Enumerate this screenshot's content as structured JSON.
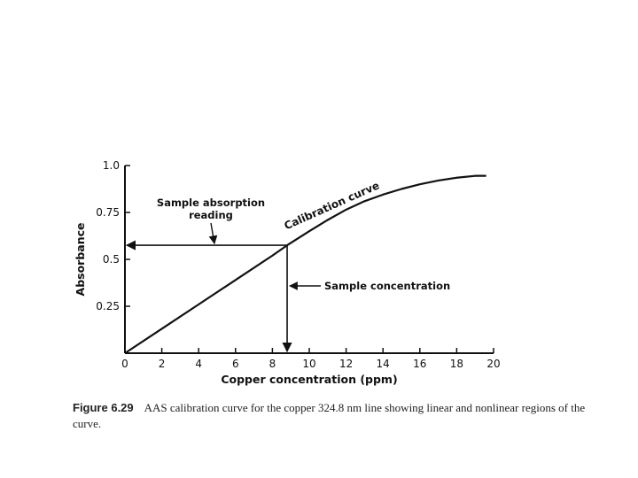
{
  "chart_data": {
    "type": "line",
    "xlabel": "Copper concentration (ppm)",
    "ylabel": "Absorbance",
    "xlim": [
      0,
      20
    ],
    "ylim": [
      0,
      1.0
    ],
    "x_ticks": [
      0,
      2,
      4,
      6,
      8,
      10,
      12,
      14,
      16,
      18,
      20
    ],
    "x_tick_labels": [
      "0",
      "2",
      "4",
      "6",
      "8",
      "10",
      "12",
      "14",
      "16",
      "18",
      "20"
    ],
    "y_ticks": [
      0.25,
      0.5,
      0.75,
      1.0
    ],
    "y_tick_labels": [
      "0.25",
      "0.5",
      "0.75",
      "1.0"
    ],
    "grid": false,
    "series": [
      {
        "name": "Calibration curve",
        "x": [
          0,
          2,
          4,
          6,
          8,
          8.8,
          10,
          11,
          12,
          13,
          14,
          15,
          16,
          17,
          18,
          19,
          19.6
        ],
        "y": [
          0,
          0.13,
          0.26,
          0.39,
          0.52,
          0.575,
          0.65,
          0.71,
          0.765,
          0.81,
          0.845,
          0.875,
          0.9,
          0.92,
          0.935,
          0.945,
          0.945
        ]
      }
    ],
    "sample_point": {
      "x": 8.8,
      "y": 0.575
    },
    "annotations": {
      "calibration_curve": "Calibration curve",
      "sample_absorption_line1": "Sample absorption",
      "sample_absorption_line2": "reading",
      "sample_concentration": "Sample concentration"
    }
  },
  "caption": {
    "figure_number": "Figure 6.29",
    "text": "AAS calibration curve for the copper 324.8 nm line showing linear and nonlinear regions of the curve."
  }
}
